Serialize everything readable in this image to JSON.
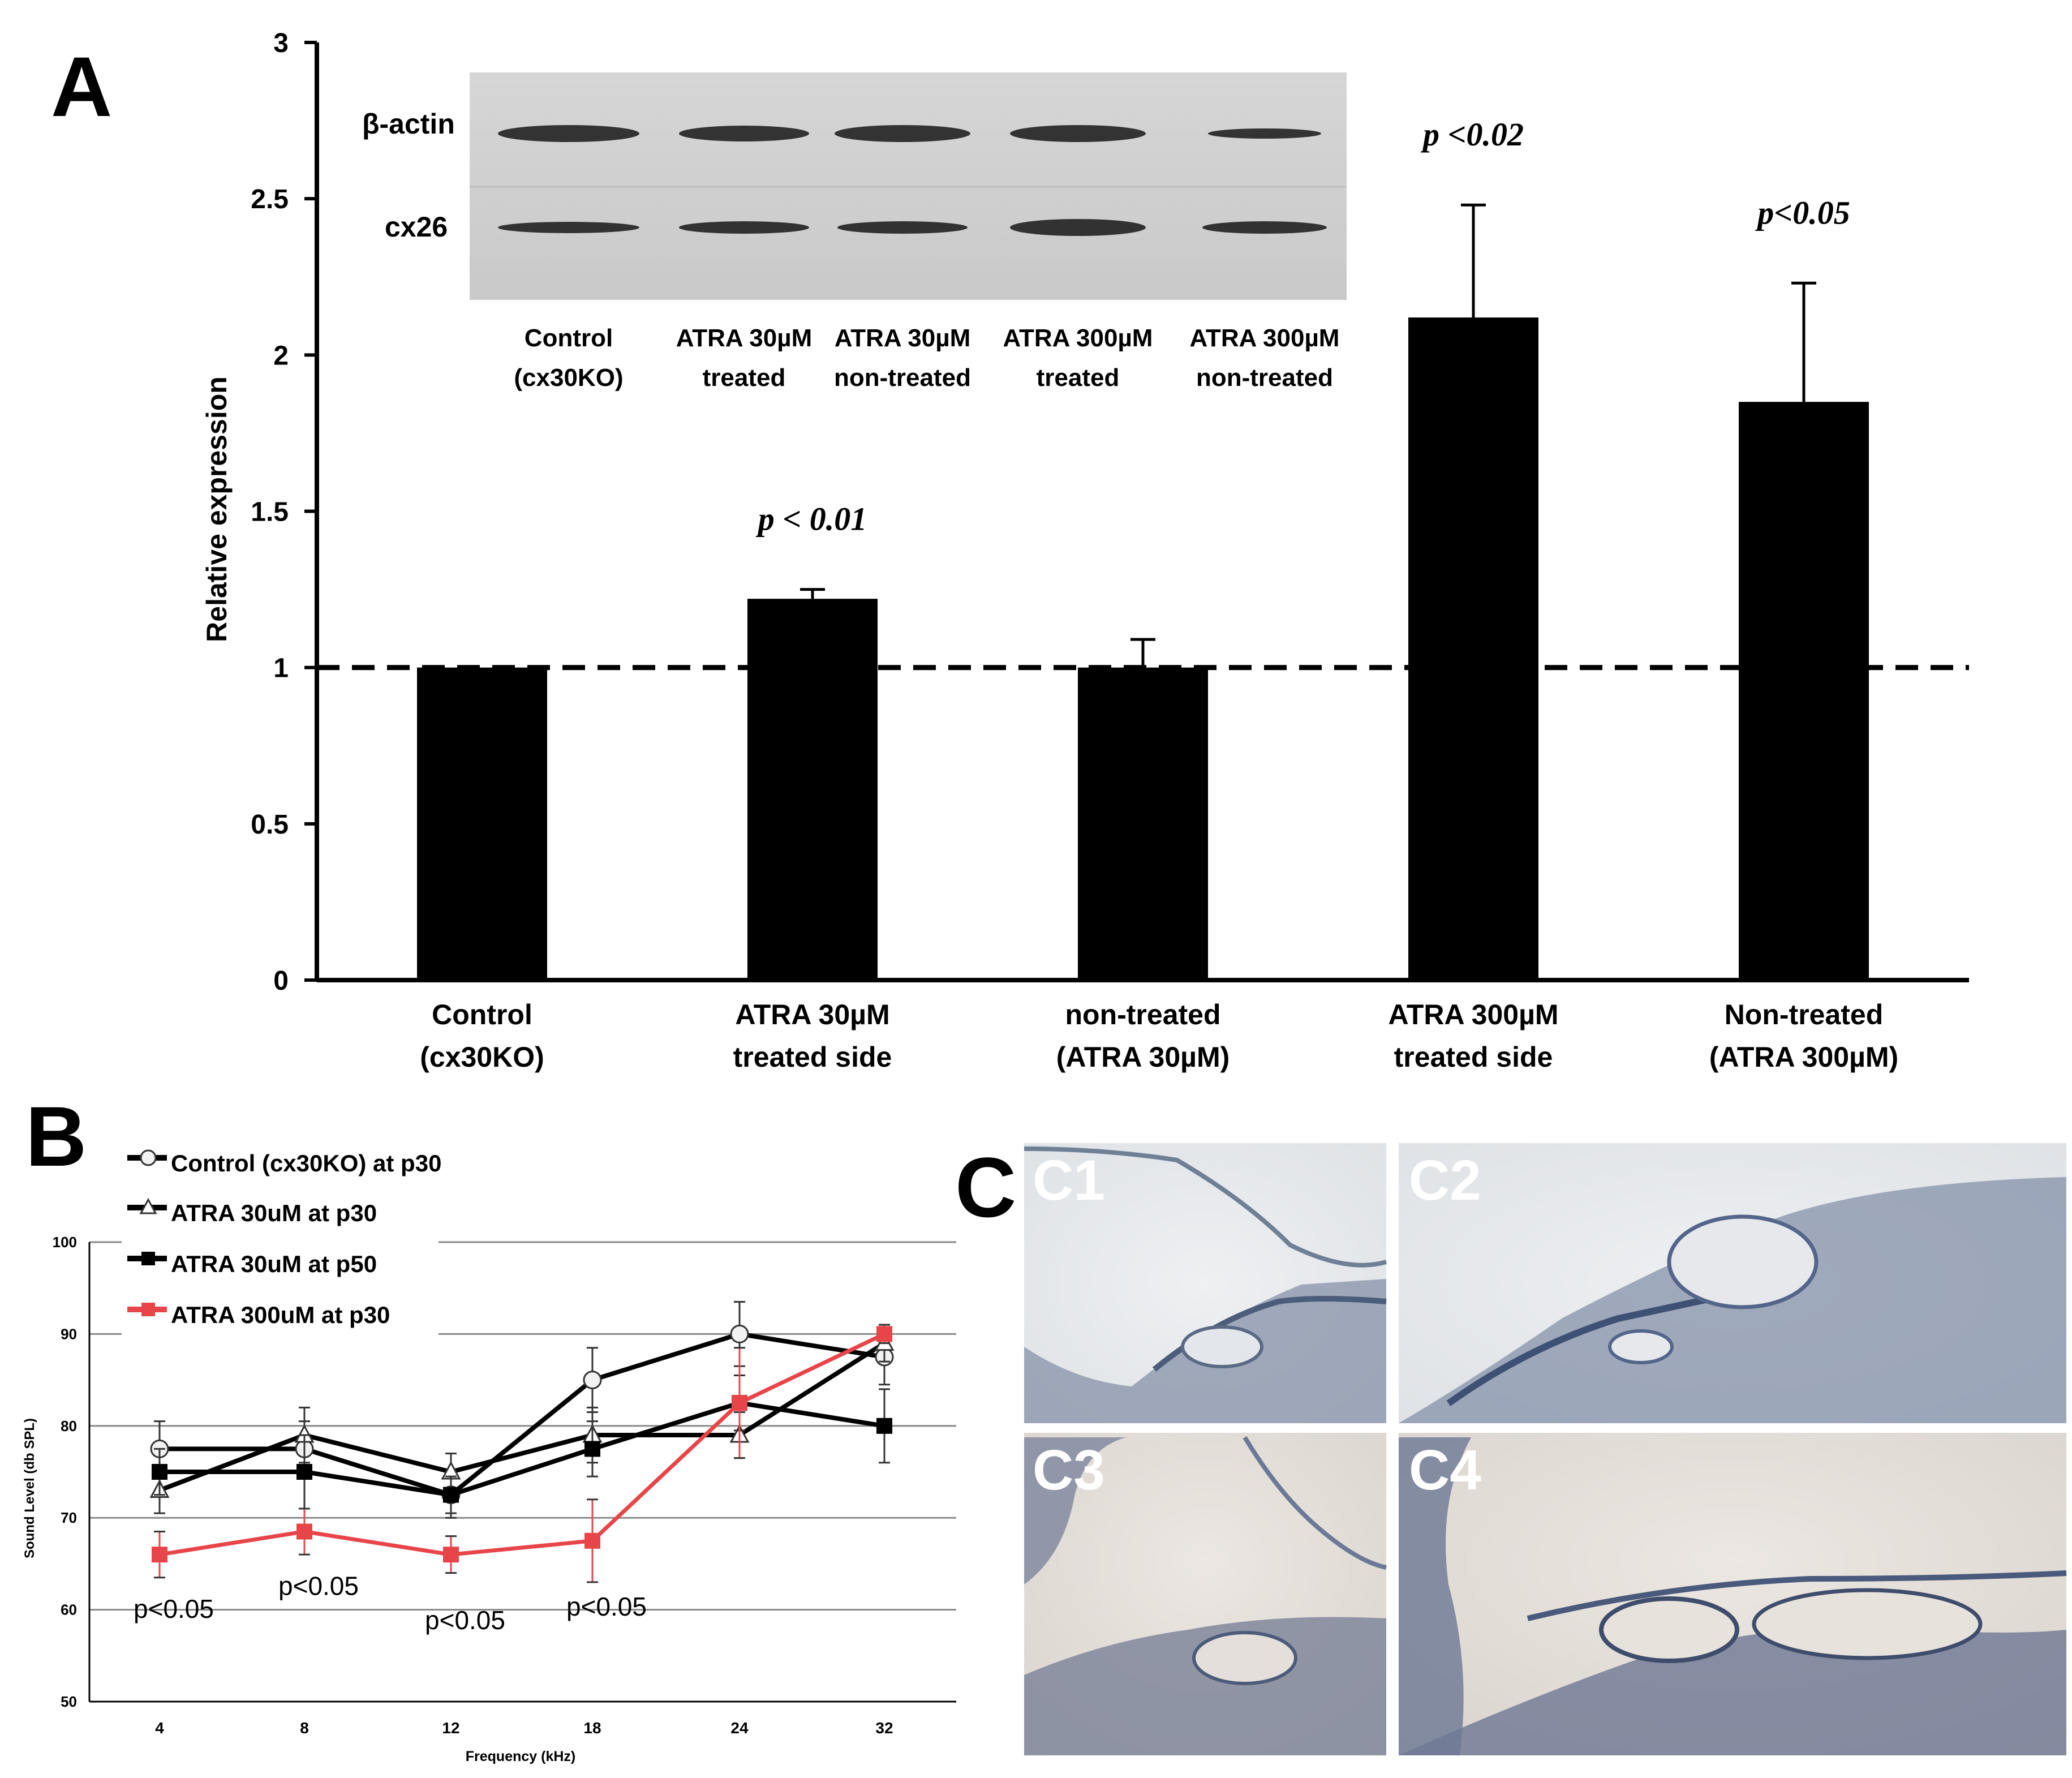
{
  "panels": {
    "a_letter": "A",
    "b_letter": "B",
    "c_letter": "C"
  },
  "chart_data": [
    {
      "panel": "A",
      "type": "bar",
      "ylabel": "Relative expression",
      "ylim": [
        0,
        3
      ],
      "yticks": [
        "0",
        "0.5",
        "1",
        "1.5",
        "2",
        "2.5",
        "3"
      ],
      "categories": [
        [
          "Control",
          "(cx30KO)"
        ],
        [
          "ATRA 30µM",
          "treated side"
        ],
        [
          "non-treated",
          "(ATRA 30µM)"
        ],
        [
          "ATRA 300µM",
          "treated side"
        ],
        [
          "Non-treated",
          "(ATRA 300µM)"
        ]
      ],
      "values": [
        1.0,
        1.22,
        1.0,
        2.12,
        1.85
      ],
      "errors": [
        0.0,
        0.03,
        0.09,
        0.36,
        0.38
      ],
      "p_values": [
        "",
        "p < 0.01",
        "",
        "p <0.02",
        "p<0.05"
      ],
      "reference_line": 1,
      "bar_color": "#000000",
      "inset_blot": {
        "rows": [
          "β-actin",
          "cx26"
        ],
        "lanes": [
          [
            "Control",
            "(cx30KO)"
          ],
          [
            "ATRA 30µM",
            "treated"
          ],
          [
            "ATRA 30µM",
            "non-treated"
          ],
          [
            "ATRA 300µM",
            "treated"
          ],
          [
            "ATRA 300µM",
            "non-treated"
          ]
        ]
      }
    },
    {
      "panel": "B",
      "type": "line",
      "xlabel": "Frequency (kHz)",
      "ylabel": "Sound Level (db SPL)",
      "x": [
        "4",
        "8",
        "12",
        "18",
        "24",
        "32"
      ],
      "ylim": [
        50,
        100
      ],
      "yticks": [
        "50",
        "60",
        "70",
        "80",
        "90",
        "100"
      ],
      "grid": true,
      "legend_position": "top-left",
      "series": [
        {
          "name": "Control (cx30KO) at p30",
          "marker": "circle",
          "color": "#000000",
          "values": [
            77.5,
            77.5,
            72.5,
            85,
            90,
            87.5
          ],
          "errors": [
            3,
            3,
            2.5,
            3.5,
            3.5,
            3
          ]
        },
        {
          "name": "ATRA 30uM at p30",
          "marker": "triangle",
          "color": "#000000",
          "values": [
            73,
            79,
            75,
            79,
            79,
            89
          ],
          "errors": [
            2.5,
            3,
            2,
            3,
            2.5,
            2
          ]
        },
        {
          "name": "ATRA 30uM at p50",
          "marker": "square",
          "color": "#000000",
          "values": [
            75,
            75,
            72.5,
            77.5,
            82.5,
            80
          ],
          "errors": [
            2.5,
            4,
            2,
            3,
            3,
            4
          ]
        },
        {
          "name": "ATRA 300uM at p30",
          "marker": "square",
          "color": "#e8454a",
          "values": [
            66,
            68.5,
            66,
            67.5,
            82.5,
            90
          ],
          "errors": [
            2.5,
            2.5,
            2,
            4.5,
            6,
            1
          ]
        }
      ],
      "annotations": [
        "p<0.05",
        "p<0.05",
        "p<0.05",
        "p<0.05"
      ]
    }
  ],
  "micrographs": [
    "C1",
    "C2",
    "C3",
    "C4"
  ]
}
